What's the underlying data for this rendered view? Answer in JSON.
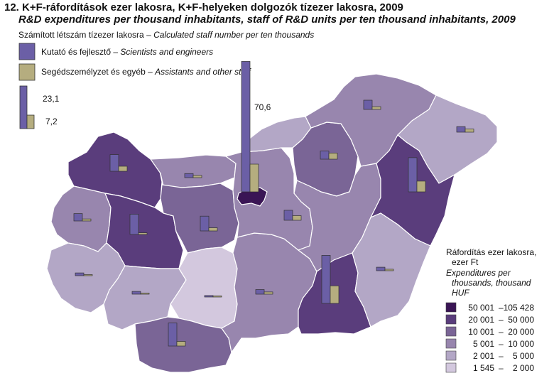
{
  "title": {
    "hu": "12. K+F-ráfordítások ezer lakosra, K+F-helyeken dolgozók tízezer lakosra, 2009",
    "en": "R&D expenditures per thousand inhabitants, staff of R&D units per ten thousand inhabitants, 2009"
  },
  "staff_legend": {
    "heading_hu": "Számított létszám tízezer lakosra",
    "heading_sep": " – ",
    "heading_en": "Calculated staff number per ten thousands",
    "researchers": {
      "hu": "Kutató és fejlesztő",
      "sep": " – ",
      "en": "Scientists and engineers",
      "color": "#6b5fa6"
    },
    "assistants": {
      "hu": "Segédszemélyzet és egyéb",
      "sep": " – ",
      "en": "Assistants and other staff",
      "color": "#b5ad7f"
    },
    "sample_researchers": "23,1",
    "sample_assistants": "7,2"
  },
  "budapest_researchers_label": "70,6",
  "expenditure_legend": {
    "heading_hu_1": "Ráfordítás ezer lakosra,",
    "heading_hu_2": "ezer Ft",
    "heading_en_1": "Expenditures per",
    "heading_en_2": "thousands, thousand",
    "heading_en_3": "HUF",
    "classes": [
      {
        "from": "50 001",
        "to": "105 428",
        "color": "#3a1555"
      },
      {
        "from": "20 001",
        "to": "50 000",
        "color": "#5a3d7c"
      },
      {
        "from": "10 001",
        "to": "20 000",
        "color": "#7a6596"
      },
      {
        "from": "5 001",
        "to": "10 000",
        "color": "#9886ae"
      },
      {
        "from": "2 001",
        "to": "5 000",
        "color": "#b3a7c6"
      },
      {
        "from": "1 545",
        "to": "2 000",
        "color": "#d3c8de"
      }
    ]
  },
  "border_color": "#ffffff",
  "counties": [
    {
      "id": "gyor-moson-sopron",
      "class_index": 1,
      "researchers": 9.0,
      "assistants": 2.7
    },
    {
      "id": "komarom-esztergom",
      "class_index": 3,
      "researchers": 2.2,
      "assistants": 1.2
    },
    {
      "id": "vas",
      "class_index": 3,
      "researchers": 4.0,
      "assistants": 1.1
    },
    {
      "id": "veszprem",
      "class_index": 1,
      "researchers": 11.0,
      "assistants": 0.9
    },
    {
      "id": "fejer",
      "class_index": 2,
      "researchers": 8.0,
      "assistants": 1.7
    },
    {
      "id": "zala",
      "class_index": 4,
      "researchers": 1.5,
      "assistants": 0.6
    },
    {
      "id": "somogy",
      "class_index": 4,
      "researchers": 1.5,
      "assistants": 0.6
    },
    {
      "id": "tolna",
      "class_index": 5,
      "researchers": 0.8,
      "assistants": 0.6
    },
    {
      "id": "baranya",
      "class_index": 2,
      "researchers": 12.5,
      "assistants": 2.5
    },
    {
      "id": "bacs-kiskun",
      "class_index": 3,
      "researchers": 2.5,
      "assistants": 1.2
    },
    {
      "id": "pest",
      "class_index": 3,
      "researchers": 5.4,
      "assistants": 2.5
    },
    {
      "id": "nograd",
      "class_index": 4,
      "researchers": 1.7,
      "assistants": 0.8
    },
    {
      "id": "heves",
      "class_index": 2,
      "researchers": 4.4,
      "assistants": 3.3
    },
    {
      "id": "borsod-abauj-zemplen",
      "class_index": 3,
      "researchers": 5.0,
      "assistants": 1.5
    },
    {
      "id": "szabolcs-szatmar-bereg",
      "class_index": 4,
      "researchers": 3.0,
      "assistants": 1.7
    },
    {
      "id": "jasz-nagykun-szolnok",
      "class_index": 3,
      "researchers": 3.7,
      "assistants": 1.7
    },
    {
      "id": "hajdu-bihar",
      "class_index": 1,
      "researchers": 18.5,
      "assistants": 5.8
    },
    {
      "id": "csongrad",
      "class_index": 1,
      "researchers": 26.0,
      "assistants": 9.5
    },
    {
      "id": "bekes",
      "class_index": 4,
      "researchers": 1.9,
      "assistants": 0.8
    },
    {
      "id": "budapest",
      "class_index": 0,
      "researchers": 70.6,
      "assistants": 15.0
    }
  ]
}
